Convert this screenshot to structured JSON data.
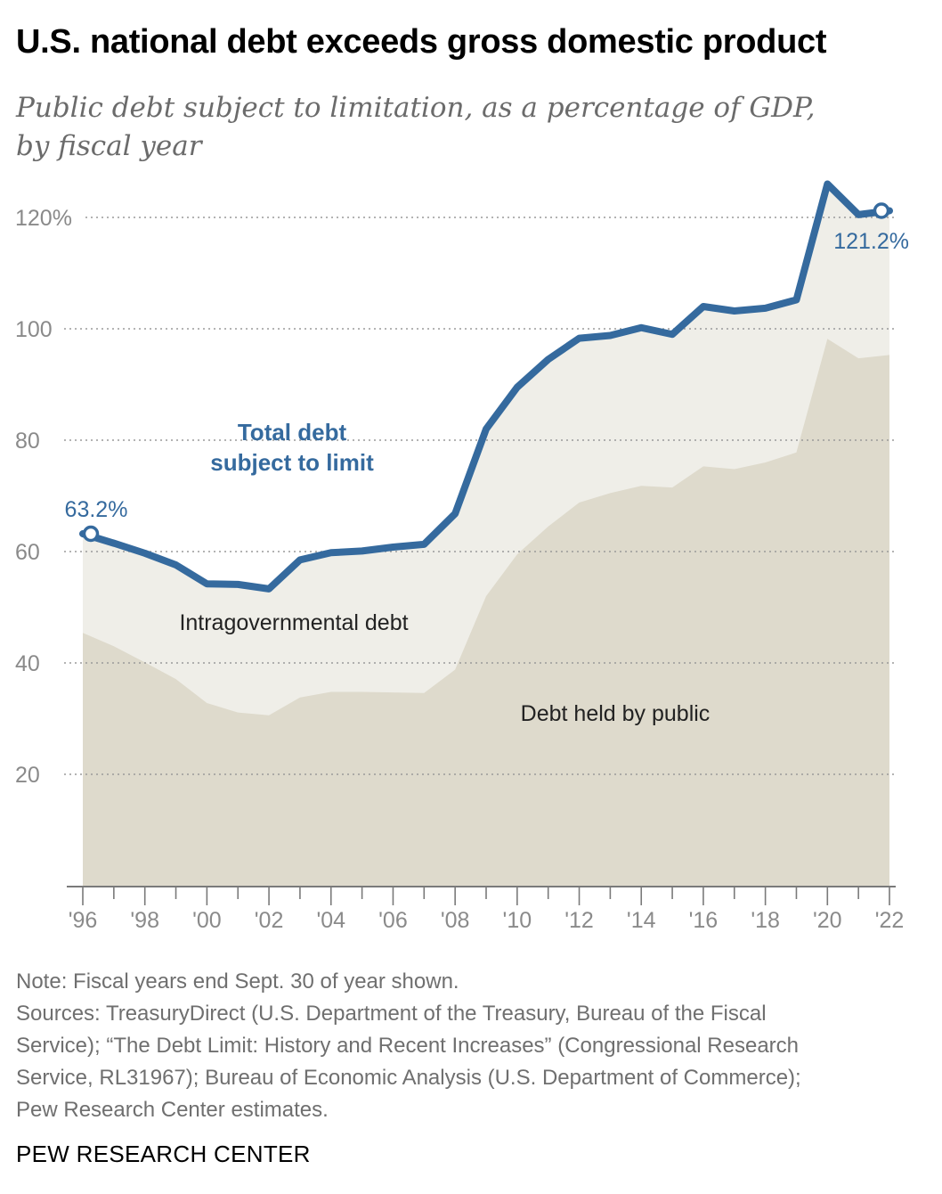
{
  "title": "U.S. national debt exceeds gross domestic product",
  "subtitle_line1": "Public debt subject to limitation, as a percentage of GDP,",
  "subtitle_line2": "by fiscal year",
  "chart_data": {
    "type": "area",
    "x": [
      1996,
      1997,
      1998,
      1999,
      2000,
      2001,
      2002,
      2003,
      2004,
      2005,
      2006,
      2007,
      2008,
      2009,
      2010,
      2011,
      2012,
      2013,
      2014,
      2015,
      2016,
      2017,
      2018,
      2019,
      2020,
      2021,
      2022
    ],
    "series": [
      {
        "name": "Total debt subject to limit",
        "label_line1": "Total debt",
        "label_line2": "subject to limit",
        "values": [
          63.2,
          61.5,
          59.7,
          57.6,
          54.2,
          54.1,
          53.3,
          58.5,
          59.8,
          60.1,
          60.8,
          61.3,
          66.8,
          82.0,
          89.5,
          94.5,
          98.3,
          98.8,
          100.2,
          99.0,
          104.0,
          103.2,
          103.7,
          105.2,
          126.0,
          120.5,
          121.2
        ],
        "color": "#356a9e"
      },
      {
        "name": "Debt held by public",
        "values": [
          45.4,
          43.0,
          40.1,
          37.1,
          32.8,
          31.1,
          30.6,
          33.8,
          34.8,
          34.8,
          34.7,
          34.6,
          38.8,
          52.0,
          59.5,
          64.5,
          68.8,
          70.5,
          71.8,
          71.5,
          75.3,
          74.8,
          76.0,
          77.8,
          98.2,
          94.7,
          95.3
        ],
        "color": "#dedacc"
      }
    ],
    "intragov_label": "Intragovernmental debt",
    "start_label": "63.2%",
    "end_label": "121.2%",
    "y_ticks": [
      20,
      40,
      60,
      80,
      100,
      120
    ],
    "y_tick_labels": [
      "20",
      "40",
      "60",
      "80",
      "100",
      "120%"
    ],
    "x_tick_labels": [
      "'96",
      "'98",
      "'00",
      "'02",
      "'04",
      "'06",
      "'08",
      "'10",
      "'12",
      "'14",
      "'16",
      "'18",
      "'20",
      "'22"
    ],
    "ylim": [
      0,
      130
    ],
    "xlim": [
      1996,
      2022
    ],
    "grid": true,
    "intragov_fill": "#efeee8",
    "xlabel": "",
    "ylabel": ""
  },
  "notes": {
    "note": "Note: Fiscal years end Sept. 30 of year shown.",
    "sources_line1": "Sources: TreasuryDirect (U.S. Department of the Treasury, Bureau of the Fiscal",
    "sources_line2": "Service); “The Debt Limit: History and Recent Increases” (Congressional Research",
    "sources_line3": "Service, RL31967); Bureau of Economic Analysis (U.S. Department of Commerce);",
    "sources_line4": "Pew Research Center estimates."
  },
  "brand": "PEW RESEARCH CENTER"
}
